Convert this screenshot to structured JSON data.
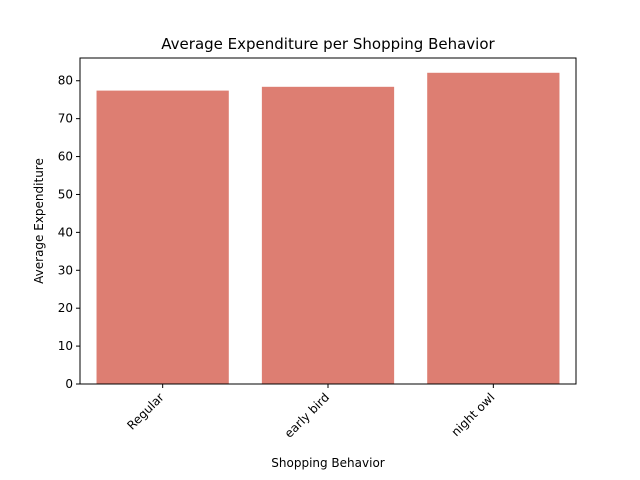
{
  "chart_data": {
    "type": "bar",
    "title": "Average Expenditure per Shopping Behavior",
    "xlabel": "Shopping Behavior",
    "ylabel": "Average Expenditure",
    "categories": [
      "Regular",
      "early bird",
      "night owl"
    ],
    "values": [
      77.4,
      78.4,
      82.1
    ],
    "ylim": [
      0,
      86
    ],
    "yticks": [
      0,
      10,
      20,
      30,
      40,
      50,
      60,
      70,
      80
    ],
    "bar_color": "#dd7e72",
    "grid": false,
    "legend": "none"
  }
}
